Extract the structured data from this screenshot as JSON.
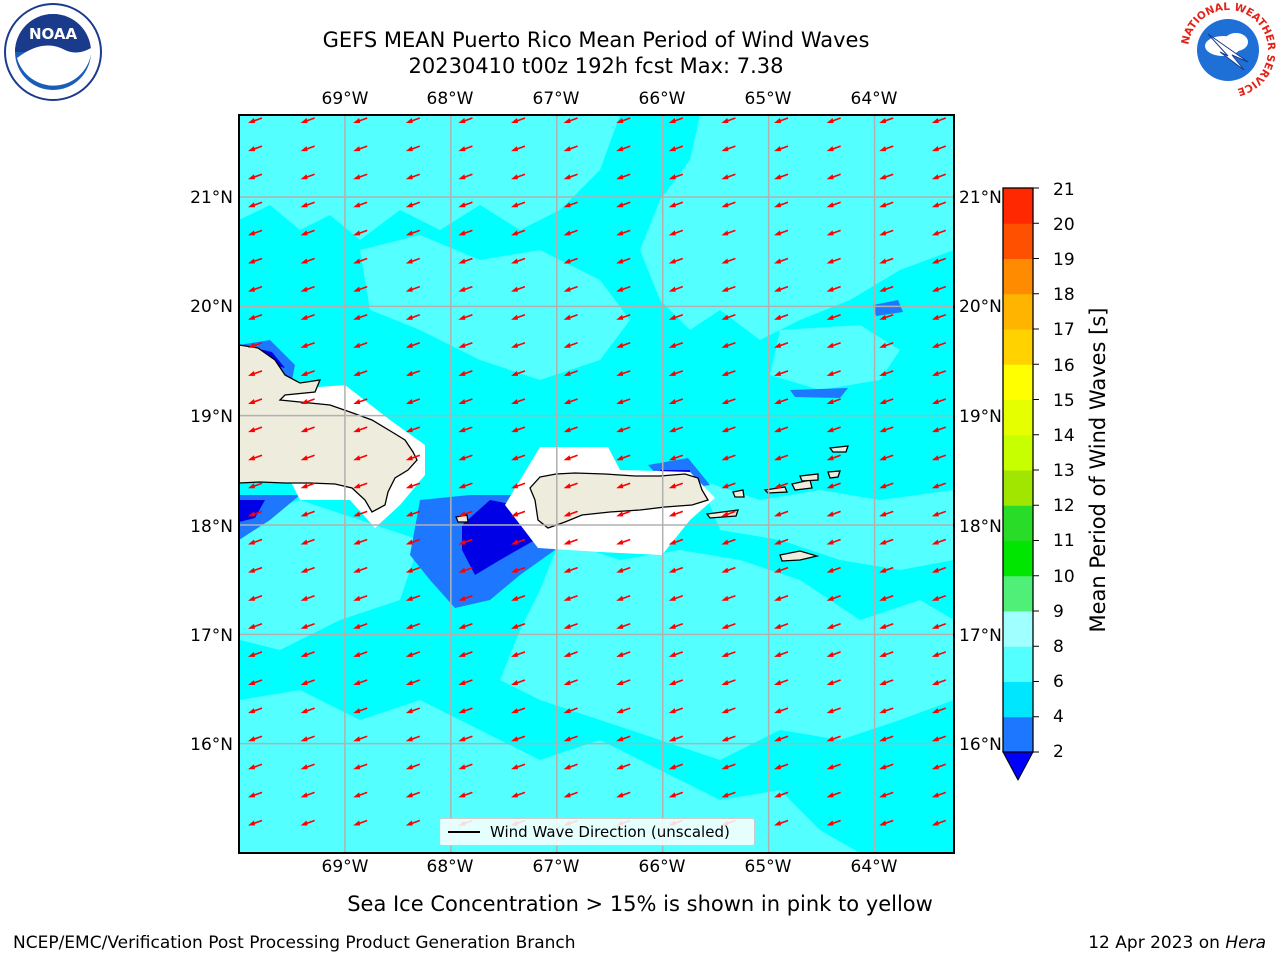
{
  "title": {
    "line1": "GEFS MEAN Puerto Rico Mean Period of Wind Waves",
    "line2": "20230410 t00z 192h fcst   Max: 7.38"
  },
  "map": {
    "lon_labels": [
      "69°W",
      "68°W",
      "67°W",
      "66°W",
      "65°W",
      "64°W"
    ],
    "lat_labels": [
      "21°N",
      "20°N",
      "19°N",
      "18°N",
      "17°N",
      "16°N"
    ],
    "extent": {
      "lon_min": -70.0,
      "lon_max": -63.25,
      "lat_min": 15.0,
      "lat_max": 21.75
    },
    "arrow_direction": "toward southwest",
    "colors": {
      "ocean": "#00ffff",
      "light": "#54ffff",
      "blue": "#1e78ff",
      "dark_blue": "#0000e6",
      "land": "#eeecdc",
      "arrow": "#ff0000",
      "grid": "#b0b0b0"
    }
  },
  "legend": {
    "label": "Wind Wave Direction (unscaled)"
  },
  "colorbar": {
    "title": "Mean Period of Wind Waves [s]",
    "ticks": [
      "2",
      "4",
      "6",
      "8",
      "9",
      "10",
      "11",
      "12",
      "13",
      "14",
      "15",
      "16",
      "17",
      "18",
      "19",
      "20",
      "21"
    ],
    "colors": [
      "#1e78ff",
      "#00e6ff",
      "#54ffff",
      "#a0ffff",
      "#50f078",
      "#00e600",
      "#28dc28",
      "#a0e600",
      "#c8ff00",
      "#e6ff00",
      "#ffff00",
      "#ffd200",
      "#ffb400",
      "#ff8c00",
      "#ff5000",
      "#ff2800",
      "#ff0000"
    ],
    "under_color": "#0000ff"
  },
  "note": "Sea Ice Concentration > 15% is shown in pink to yellow",
  "footer": {
    "left": "NCEP/EMC/Verification Post Processing Product Generation Branch",
    "date": "12 Apr 2023 on ",
    "host": "Hera"
  },
  "logos": {
    "left": "NOAA",
    "right_ring": "NATIONAL WEATHER SERVICE"
  }
}
